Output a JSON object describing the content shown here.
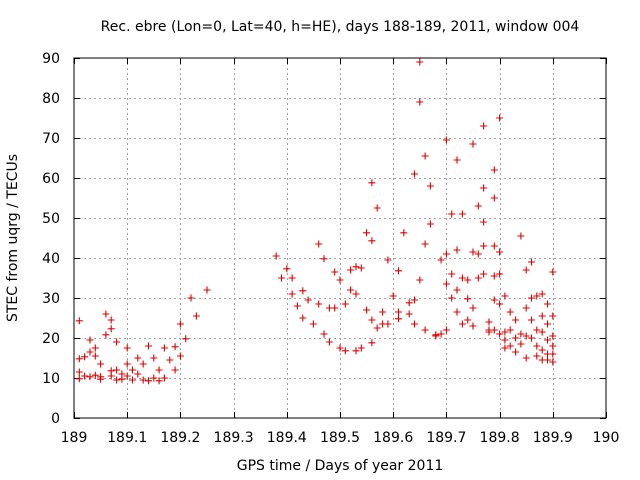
{
  "chart_data": {
    "type": "scatter",
    "title": "Rec. ebre (Lon=0, Lat=40, h=HE), days 188-189, 2011, window 004",
    "xlabel": "GPS time / Days of year 2011",
    "ylabel": "STEC from uqrg / TECUs",
    "xlim": [
      189,
      190
    ],
    "ylim": [
      0,
      90
    ],
    "xticks": [
      189,
      189.1,
      189.2,
      189.3,
      189.4,
      189.5,
      189.6,
      189.7,
      189.8,
      189.9,
      190
    ],
    "yticks": [
      0,
      10,
      20,
      30,
      40,
      50,
      60,
      70,
      80,
      90
    ],
    "xtick_labels": [
      "189",
      "189.1",
      "189.2",
      "189.3",
      "189.4",
      "189.5",
      "189.6",
      "189.7",
      "189.8",
      "189.9",
      "190"
    ],
    "ytick_labels": [
      "0",
      "10",
      "20",
      "30",
      "40",
      "50",
      "60",
      "70",
      "80",
      "90"
    ],
    "grid": true,
    "marker": "+",
    "color": "#dd0000",
    "series": [
      {
        "name": "STEC",
        "points": [
          [
            189.01,
            24.3
          ],
          [
            189.01,
            14.8
          ],
          [
            189.01,
            11.5
          ],
          [
            189.01,
            9.8
          ],
          [
            189.02,
            15.3
          ],
          [
            189.02,
            10.5
          ],
          [
            189.03,
            19.5
          ],
          [
            189.03,
            16.5
          ],
          [
            189.03,
            10.3
          ],
          [
            189.04,
            17.5
          ],
          [
            189.04,
            15.5
          ],
          [
            189.04,
            10.7
          ],
          [
            189.05,
            10.3
          ],
          [
            189.05,
            9.7
          ],
          [
            189.05,
            13.5
          ],
          [
            189.06,
            26.0
          ],
          [
            189.06,
            20.8
          ],
          [
            189.07,
            24.5
          ],
          [
            189.07,
            22.3
          ],
          [
            189.07,
            11.8
          ],
          [
            189.07,
            10.5
          ],
          [
            189.08,
            19.0
          ],
          [
            189.08,
            12.0
          ],
          [
            189.08,
            9.5
          ],
          [
            189.09,
            11.0
          ],
          [
            189.09,
            9.7
          ],
          [
            189.1,
            17.5
          ],
          [
            189.1,
            13.5
          ],
          [
            189.1,
            10.5
          ],
          [
            189.11,
            12.0
          ],
          [
            189.11,
            9.5
          ],
          [
            189.12,
            15.0
          ],
          [
            189.12,
            11.0
          ],
          [
            189.13,
            13.5
          ],
          [
            189.13,
            9.5
          ],
          [
            189.14,
            18.0
          ],
          [
            189.14,
            9.3
          ],
          [
            189.15,
            15.0
          ],
          [
            189.15,
            10.0
          ],
          [
            189.16,
            12.0
          ],
          [
            189.16,
            9.3
          ],
          [
            189.17,
            17.5
          ],
          [
            189.17,
            10.0
          ],
          [
            189.18,
            14.5
          ],
          [
            189.19,
            12.0
          ],
          [
            189.19,
            17.8
          ],
          [
            189.2,
            15.5
          ],
          [
            189.2,
            23.5
          ],
          [
            189.21,
            19.8
          ],
          [
            189.22,
            30.0
          ],
          [
            189.23,
            25.5
          ],
          [
            189.25,
            32.0
          ],
          [
            189.38,
            40.5
          ],
          [
            189.39,
            35.0
          ],
          [
            189.4,
            37.3
          ],
          [
            189.41,
            31.0
          ],
          [
            189.41,
            35.0
          ],
          [
            189.42,
            28.0
          ],
          [
            189.43,
            25.0
          ],
          [
            189.43,
            31.8
          ],
          [
            189.44,
            29.5
          ],
          [
            189.45,
            23.5
          ],
          [
            189.46,
            43.5
          ],
          [
            189.46,
            28.5
          ],
          [
            189.47,
            21.0
          ],
          [
            189.47,
            39.8
          ],
          [
            189.48,
            27.5
          ],
          [
            189.48,
            19.0
          ],
          [
            189.49,
            36.5
          ],
          [
            189.49,
            27.5
          ],
          [
            189.5,
            17.5
          ],
          [
            189.5,
            34.5
          ],
          [
            189.51,
            28.5
          ],
          [
            189.51,
            16.8
          ],
          [
            189.52,
            37.0
          ],
          [
            189.52,
            32.0
          ],
          [
            189.53,
            37.8
          ],
          [
            189.53,
            31.0
          ],
          [
            189.53,
            16.8
          ],
          [
            189.54,
            37.5
          ],
          [
            189.54,
            17.5
          ],
          [
            189.55,
            46.3
          ],
          [
            189.55,
            27.0
          ],
          [
            189.56,
            44.3
          ],
          [
            189.56,
            58.8
          ],
          [
            189.56,
            18.8
          ],
          [
            189.56,
            24.5
          ],
          [
            189.57,
            52.5
          ],
          [
            189.57,
            22.5
          ],
          [
            189.58,
            26.5
          ],
          [
            189.58,
            23.5
          ],
          [
            189.59,
            39.5
          ],
          [
            189.59,
            23.5
          ],
          [
            189.6,
            30.5
          ],
          [
            189.61,
            36.8
          ],
          [
            189.61,
            26.5
          ],
          [
            189.61,
            24.8
          ],
          [
            189.62,
            46.3
          ],
          [
            189.63,
            28.8
          ],
          [
            189.63,
            26.0
          ],
          [
            189.64,
            61.0
          ],
          [
            189.64,
            23.5
          ],
          [
            189.64,
            29.5
          ],
          [
            189.65,
            89.0
          ],
          [
            189.65,
            79.0
          ],
          [
            189.65,
            34.5
          ],
          [
            189.66,
            65.5
          ],
          [
            189.66,
            43.5
          ],
          [
            189.66,
            22.0
          ],
          [
            189.67,
            58.0
          ],
          [
            189.67,
            48.5
          ],
          [
            189.68,
            20.5
          ],
          [
            189.68,
            20.8
          ],
          [
            189.69,
            39.5
          ],
          [
            189.69,
            21.0
          ],
          [
            189.7,
            69.5
          ],
          [
            189.7,
            41.0
          ],
          [
            189.7,
            33.5
          ],
          [
            189.7,
            22.0
          ],
          [
            189.71,
            51.0
          ],
          [
            189.71,
            36.0
          ],
          [
            189.71,
            30.0
          ],
          [
            189.72,
            64.5
          ],
          [
            189.72,
            42.0
          ],
          [
            189.72,
            32.0
          ],
          [
            189.72,
            26.5
          ],
          [
            189.73,
            51.0
          ],
          [
            189.73,
            35.0
          ],
          [
            189.73,
            23.5
          ],
          [
            189.74,
            34.5
          ],
          [
            189.74,
            29.8
          ],
          [
            189.74,
            24.5
          ],
          [
            189.75,
            68.5
          ],
          [
            189.75,
            41.5
          ],
          [
            189.75,
            27.5
          ],
          [
            189.75,
            23.0
          ],
          [
            189.76,
            53.0
          ],
          [
            189.76,
            41.0
          ],
          [
            189.76,
            35.0
          ],
          [
            189.77,
            73.0
          ],
          [
            189.77,
            57.5
          ],
          [
            189.77,
            49.0
          ],
          [
            189.77,
            43.0
          ],
          [
            189.77,
            36.0
          ],
          [
            189.78,
            24.0
          ],
          [
            189.78,
            22.0
          ],
          [
            189.78,
            21.5
          ],
          [
            189.79,
            62.0
          ],
          [
            189.79,
            55.0
          ],
          [
            189.79,
            43.0
          ],
          [
            189.79,
            35.5
          ],
          [
            189.79,
            29.5
          ],
          [
            189.79,
            22.0
          ],
          [
            189.8,
            75.0
          ],
          [
            189.8,
            41.5
          ],
          [
            189.8,
            36.0
          ],
          [
            189.8,
            28.5
          ],
          [
            189.8,
            21.0
          ],
          [
            189.81,
            30.5
          ],
          [
            189.81,
            21.5
          ],
          [
            189.81,
            19.5
          ],
          [
            189.81,
            17.5
          ],
          [
            189.82,
            26.5
          ],
          [
            189.82,
            22.0
          ],
          [
            189.82,
            18.0
          ],
          [
            189.83,
            24.5
          ],
          [
            189.83,
            20.0
          ],
          [
            189.83,
            16.5
          ],
          [
            189.84,
            45.5
          ],
          [
            189.84,
            21.0
          ],
          [
            189.84,
            18.5
          ],
          [
            189.85,
            37.0
          ],
          [
            189.85,
            27.5
          ],
          [
            189.85,
            20.5
          ],
          [
            189.85,
            15.0
          ],
          [
            189.86,
            39.0
          ],
          [
            189.86,
            30.0
          ],
          [
            189.86,
            24.5
          ],
          [
            189.86,
            20.0
          ],
          [
            189.87,
            30.5
          ],
          [
            189.87,
            22.0
          ],
          [
            189.87,
            18.0
          ],
          [
            189.87,
            15.5
          ],
          [
            189.88,
            31.0
          ],
          [
            189.88,
            25.5
          ],
          [
            189.88,
            21.5
          ],
          [
            189.88,
            17.0
          ],
          [
            189.88,
            14.5
          ],
          [
            189.89,
            28.5
          ],
          [
            189.89,
            23.5
          ],
          [
            189.89,
            19.5
          ],
          [
            189.89,
            16.0
          ],
          [
            189.89,
            14.5
          ],
          [
            189.9,
            36.5
          ],
          [
            189.9,
            25.5
          ],
          [
            189.9,
            20.5
          ],
          [
            189.9,
            18.0
          ],
          [
            189.9,
            16.0
          ],
          [
            189.9,
            14.0
          ]
        ]
      }
    ]
  }
}
